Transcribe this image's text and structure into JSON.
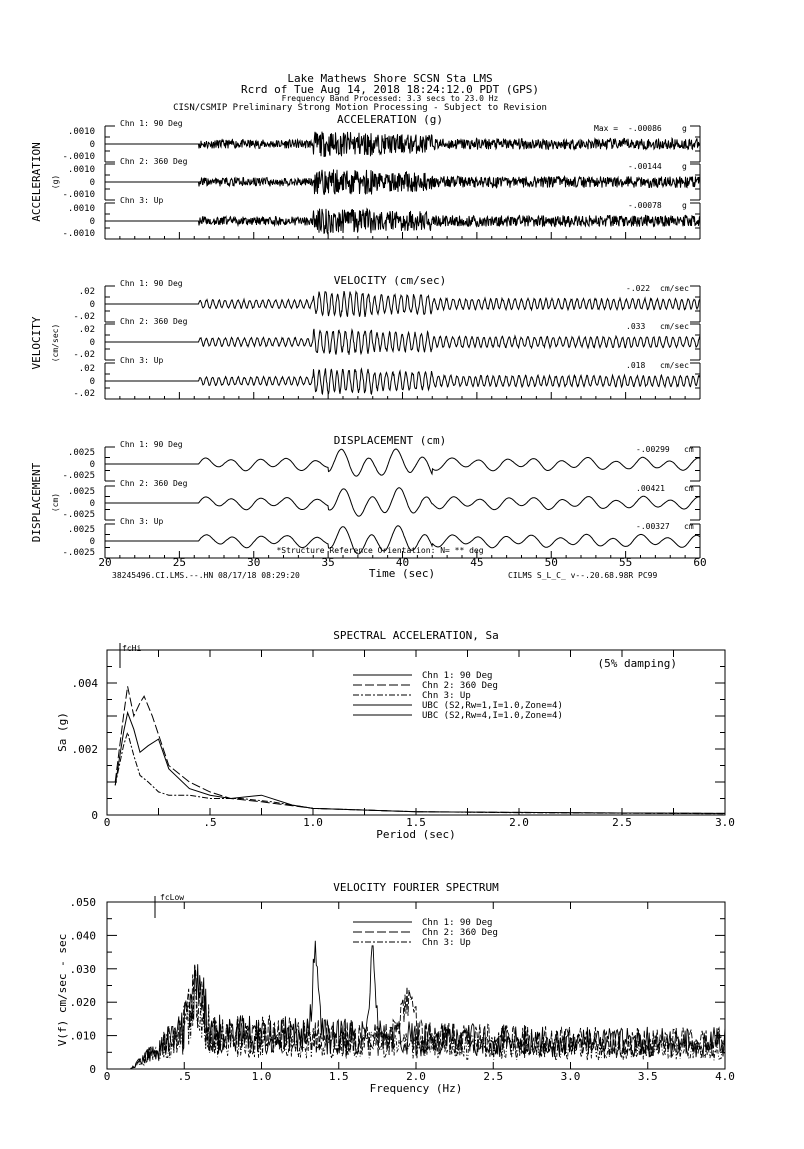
{
  "header": {
    "station": "Lake Mathews Shore    SCSN Sta LMS",
    "record": "Rcrd of Tue Aug 14, 2018 18:24:12.0 PDT (GPS)",
    "band": "Frequency Band Processed: 3.3 secs to 23.0 Hz",
    "disclaimer": "CISN/CSMIP Preliminary Strong Motion Processing - Subject to Revision"
  },
  "footer": {
    "left": "38245496.CI.LMS.--.HN 08/17/18 08:29:20",
    "right": "CILMS  S_L_C_  v--.20.68.98R PC99",
    "orientation_note": "*Structure Reference Orientation: N= ** deg"
  },
  "chart_data": [
    {
      "type": "line",
      "title": "ACCELERATION (g)",
      "ylabel": "ACCELERATION",
      "yunit": "(g)",
      "xlim": [
        20,
        60
      ],
      "ylim": [
        -0.001,
        0.001
      ],
      "yticks": [
        ".0010",
        "0",
        "-.0010"
      ],
      "max_prefix": "Max =",
      "channels": [
        {
          "name": "Chn 1: 90 Deg",
          "max": "-.00086",
          "unit": "g",
          "peak": 0.00086
        },
        {
          "name": "Chn 2: 360 Deg",
          "max": "-.00144",
          "unit": "g",
          "peak": 0.00144
        },
        {
          "name": "Chn 3: Up",
          "max": "-.00078",
          "unit": "g",
          "peak": 0.00078
        }
      ]
    },
    {
      "type": "line",
      "title": "VELOCITY (cm/sec)",
      "ylabel": "VELOCITY",
      "yunit": "(cm/sec)",
      "xlim": [
        20,
        60
      ],
      "ylim": [
        -0.02,
        0.02
      ],
      "yticks": [
        ".02",
        "0",
        "-.02"
      ],
      "channels": [
        {
          "name": "Chn 1: 90 Deg",
          "max": "-.022",
          "unit": "cm/sec",
          "peak": 0.022
        },
        {
          "name": "Chn 2: 360 Deg",
          "max": ".033",
          "unit": "cm/sec",
          "peak": 0.033
        },
        {
          "name": "Chn 3: Up",
          "max": ".018",
          "unit": "cm/sec",
          "peak": 0.018
        }
      ]
    },
    {
      "type": "line",
      "title": "DISPLACEMENT (cm)",
      "ylabel": "DISPLACEMENT",
      "yunit": "(cm)",
      "xlim": [
        20,
        60
      ],
      "ylim": [
        -0.0025,
        0.0025
      ],
      "yticks": [
        ".0025",
        "0",
        "-.0025"
      ],
      "xlabel": "Time (sec)",
      "xticks": [
        "20",
        "25",
        "30",
        "35",
        "40",
        "45",
        "50",
        "55",
        "60"
      ],
      "channels": [
        {
          "name": "Chn 1: 90 Deg",
          "max": "-.00299",
          "unit": "cm",
          "peak": 0.00299
        },
        {
          "name": "Chn 2: 360 Deg",
          "max": ".00421",
          "unit": "cm",
          "peak": 0.00421
        },
        {
          "name": "Chn 3: Up",
          "max": "-.00327",
          "unit": "cm",
          "peak": 0.00327
        }
      ]
    },
    {
      "type": "line",
      "title": "SPECTRAL ACCELERATION, Sa",
      "xlabel": "Period (sec)",
      "ylabel": "Sa (g)",
      "xlim": [
        0,
        3.0
      ],
      "ylim": [
        0,
        0.005
      ],
      "xticks": [
        "0",
        ".5",
        "1.0",
        "1.5",
        "2.0",
        "2.5",
        "3.0"
      ],
      "yticks": [
        ".004",
        ".002",
        "0"
      ],
      "annotation": "(5% damping)",
      "marker": "fcHi",
      "legend": [
        "Chn 1: 90 Deg",
        "Chn 2: 360 Deg",
        "Chn 3: Up",
        "UBC (S2,Rw=1,I=1.0,Zone=4)",
        "UBC (S2,Rw=4,I=1.0,Zone=4)"
      ],
      "series": [
        {
          "name": "Chn 1: 90 Deg",
          "style": "solid",
          "x": [
            0.04,
            0.08,
            0.1,
            0.13,
            0.16,
            0.2,
            0.25,
            0.3,
            0.4,
            0.5,
            0.6,
            0.75,
            0.9,
            1.0,
            1.5,
            2.0,
            2.5,
            3.0
          ],
          "y": [
            0.0009,
            0.0025,
            0.0031,
            0.0026,
            0.0019,
            0.0021,
            0.0023,
            0.0014,
            0.0008,
            0.0006,
            0.0005,
            0.0006,
            0.0003,
            0.0002,
            0.0001,
            8e-05,
            6e-05,
            5e-05
          ]
        },
        {
          "name": "Chn 2: 360 Deg",
          "style": "dashed",
          "x": [
            0.04,
            0.08,
            0.1,
            0.13,
            0.16,
            0.18,
            0.22,
            0.3,
            0.4,
            0.5,
            0.6,
            0.75,
            1.0,
            1.5,
            2.0,
            2.5,
            3.0
          ],
          "y": [
            0.001,
            0.003,
            0.0039,
            0.003,
            0.0034,
            0.0036,
            0.003,
            0.0015,
            0.001,
            0.0007,
            0.0005,
            0.0004,
            0.0002,
            0.0001,
            8e-05,
            6e-05,
            5e-05
          ]
        },
        {
          "name": "Chn 3: Up",
          "style": "dashdot",
          "x": [
            0.04,
            0.08,
            0.1,
            0.13,
            0.16,
            0.2,
            0.25,
            0.3,
            0.4,
            0.5,
            0.65,
            0.8,
            1.0,
            1.5,
            2.0,
            3.0
          ],
          "y": [
            0.0009,
            0.0021,
            0.0025,
            0.0018,
            0.0012,
            0.001,
            0.0007,
            0.0006,
            0.0006,
            0.0005,
            0.0005,
            0.0004,
            0.0002,
            0.0001,
            7e-05,
            4e-05
          ]
        }
      ]
    },
    {
      "type": "line",
      "title": "VELOCITY FOURIER SPECTRUM",
      "xlabel": "Frequency (Hz)",
      "ylabel": "V(f)   cm/sec - sec",
      "xlim": [
        0,
        4.0
      ],
      "ylim": [
        0,
        0.05
      ],
      "xticks": [
        "0",
        ".5",
        "1.0",
        "1.5",
        "2.0",
        "2.5",
        "3.0",
        "3.5",
        "4.0"
      ],
      "yticks": [
        ".050",
        ".040",
        ".030",
        ".020",
        ".010",
        "0"
      ],
      "marker": "fcLow",
      "legend": [
        "Chn 1: 90 Deg",
        "Chn 2: 360 Deg",
        "Chn 3: Up"
      ],
      "peaks": [
        {
          "x": 0.58,
          "y": 0.032
        },
        {
          "x": 1.35,
          "y": 0.035
        },
        {
          "x": 1.72,
          "y": 0.035
        }
      ]
    }
  ]
}
